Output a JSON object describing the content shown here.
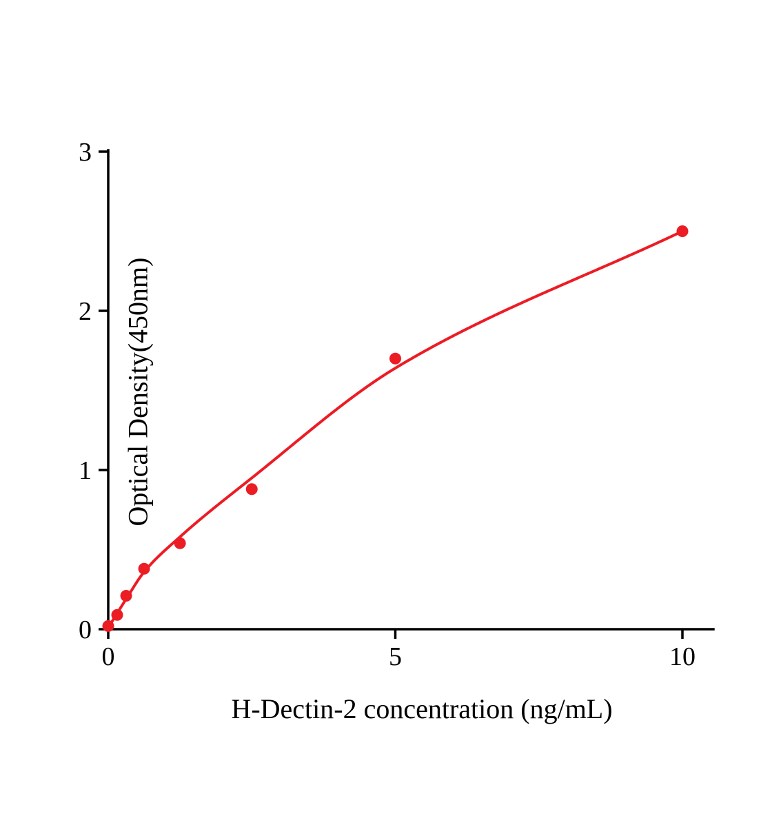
{
  "chart_data": {
    "type": "scatter",
    "title": "",
    "xlabel": "H-Dectin-2 concentration (ng/mL)",
    "ylabel": "Optical Density(450nm)",
    "x_ticks": [
      0,
      5,
      10
    ],
    "y_ticks": [
      0,
      1,
      2,
      3
    ],
    "xlim": [
      0,
      10.55
    ],
    "ylim": [
      0,
      3
    ],
    "grid": false,
    "legend": "none",
    "accent_color": "#ec1c24",
    "axis_color": "#000000",
    "points": [
      {
        "x": 0,
        "y": 0.02
      },
      {
        "x": 0.156,
        "y": 0.09
      },
      {
        "x": 0.3125,
        "y": 0.21
      },
      {
        "x": 0.625,
        "y": 0.38
      },
      {
        "x": 1.25,
        "y": 0.54
      },
      {
        "x": 2.5,
        "y": 0.88
      },
      {
        "x": 5,
        "y": 1.7
      },
      {
        "x": 10,
        "y": 2.5
      }
    ],
    "trendline": {
      "type": "smooth-fit",
      "through": [
        [
          0,
          0.01
        ],
        [
          0.3125,
          0.19
        ],
        [
          0.625,
          0.36
        ],
        [
          1.25,
          0.58
        ],
        [
          2.5,
          0.95
        ],
        [
          5,
          1.64
        ],
        [
          10,
          2.5
        ]
      ]
    }
  }
}
